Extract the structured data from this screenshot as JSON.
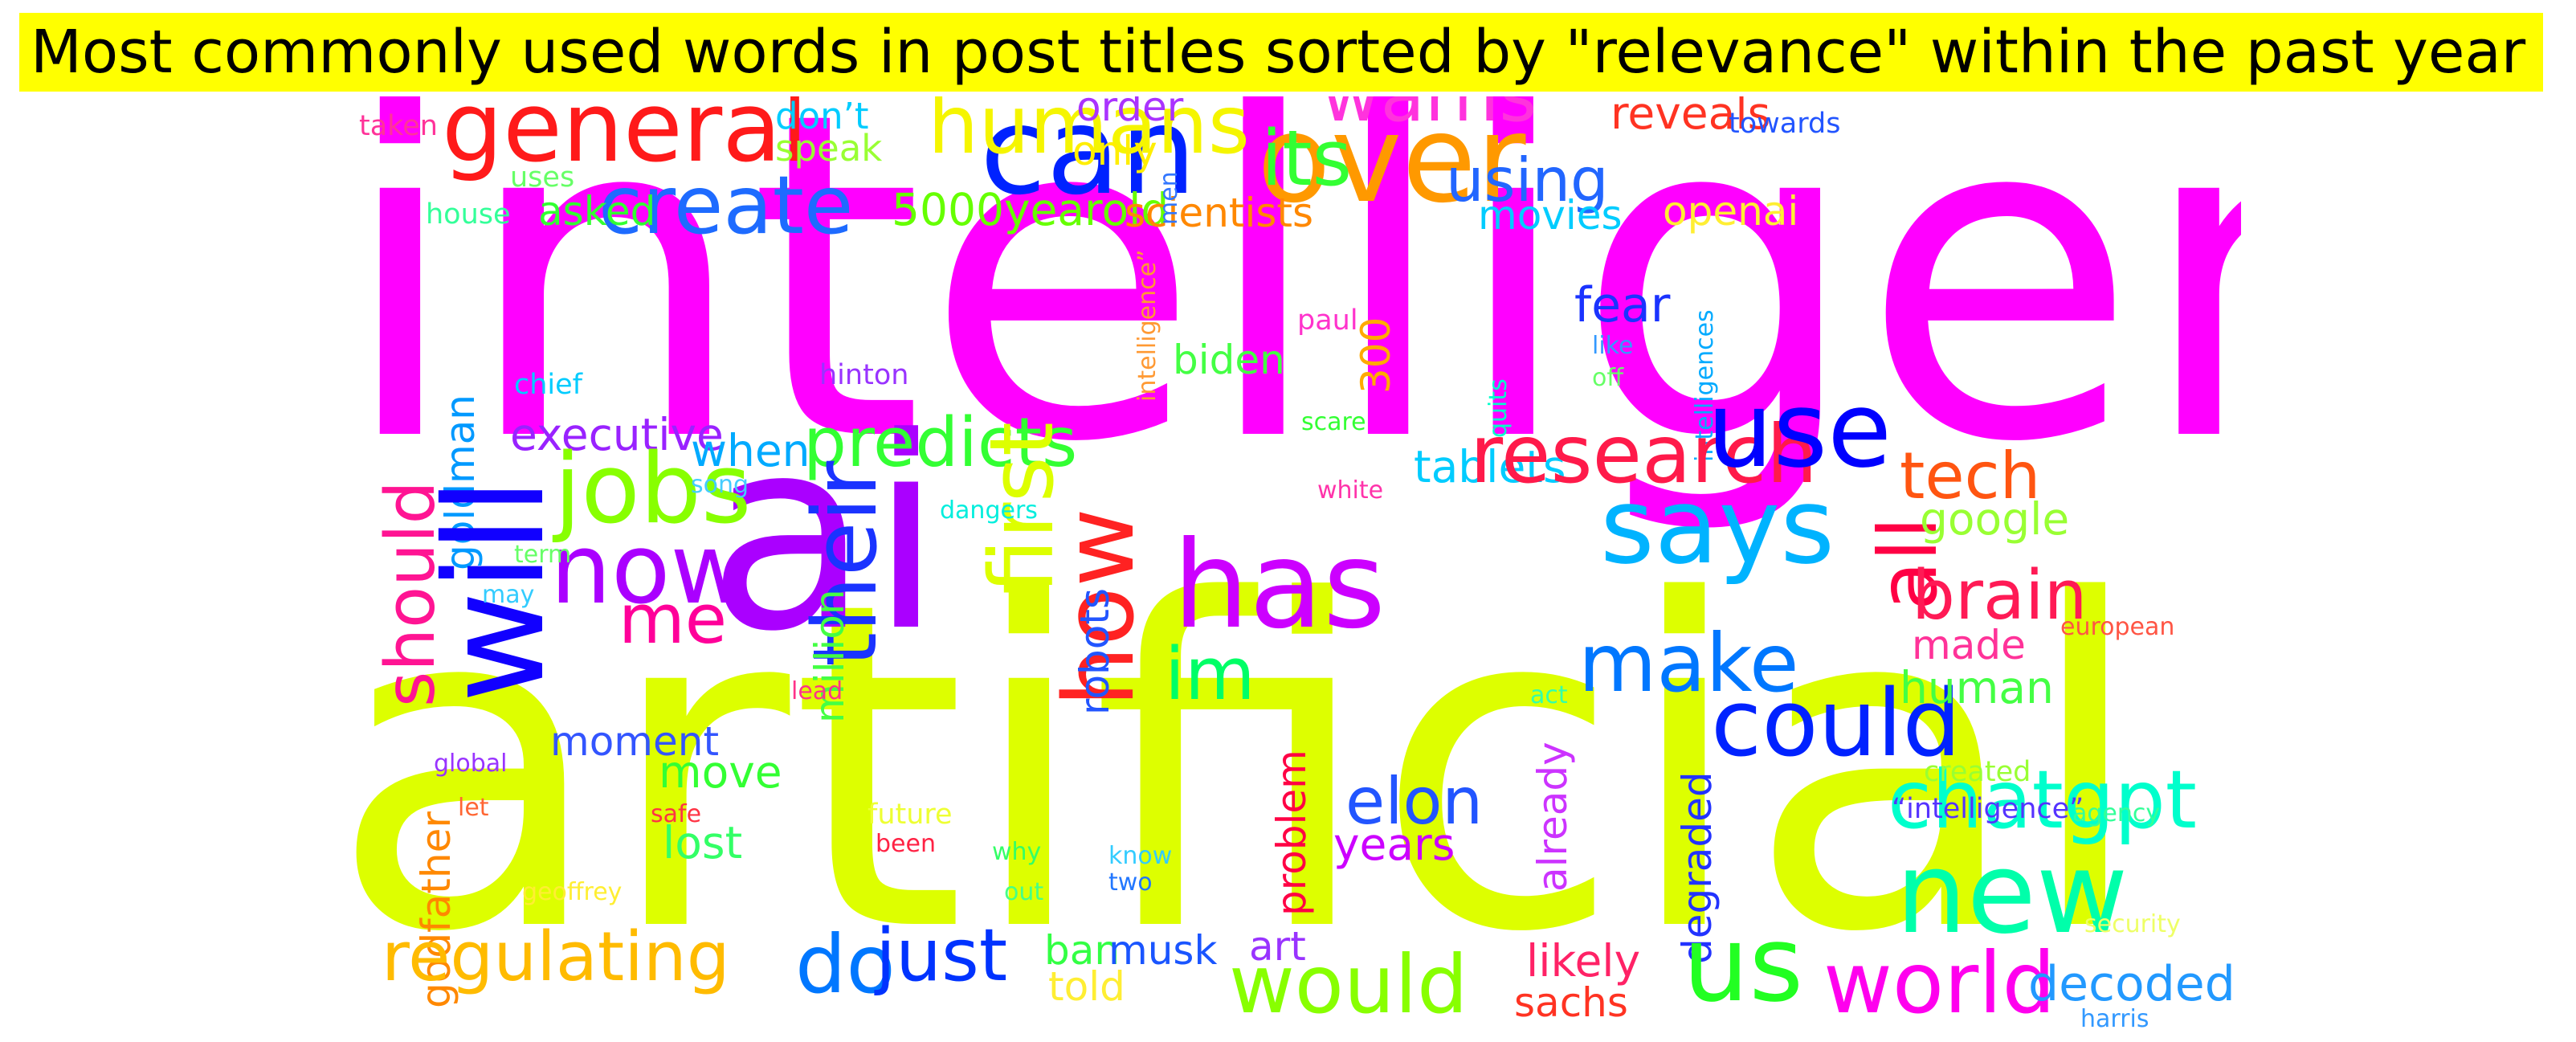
{
  "title": "Most commonly used words in post titles sorted by \"relevance\" within the past year",
  "words": [
    {
      "text": "intelligence",
      "color": "#ff00ff"
    },
    {
      "text": "artificial",
      "color": "#ddff00"
    },
    {
      "text": "ai",
      "color": "#aa00ff"
    },
    {
      "text": "can",
      "color": "#0022ff"
    },
    {
      "text": "over",
      "color": "#ff9900"
    },
    {
      "text": "general",
      "color": "#ff1a1a"
    },
    {
      "text": "humans",
      "color": "#f5f500"
    },
    {
      "text": "warns",
      "color": "#ff33dd"
    },
    {
      "text": "its",
      "color": "#33ff33"
    },
    {
      "text": "using",
      "color": "#2266ff"
    },
    {
      "text": "reveals",
      "color": "#ff3322"
    },
    {
      "text": "towards",
      "color": "#2255ff"
    },
    {
      "text": "create",
      "color": "#1e6bff"
    },
    {
      "text": "don’t",
      "color": "#00ccff"
    },
    {
      "text": "speak",
      "color": "#99ff33"
    },
    {
      "text": "order",
      "color": "#aa33ff"
    },
    {
      "text": "only",
      "color": "#ffee00"
    },
    {
      "text": "taken",
      "color": "#ff3399"
    },
    {
      "text": "uses",
      "color": "#66ff66"
    },
    {
      "text": "house",
      "color": "#33ff99"
    },
    {
      "text": "asked",
      "color": "#33ff33"
    },
    {
      "text": "5000yearold",
      "color": "#66ff00"
    },
    {
      "text": "scientists",
      "color": "#ff8800"
    },
    {
      "text": "movies",
      "color": "#00ccff"
    },
    {
      "text": "openai",
      "color": "#ffee33"
    },
    {
      "text": "men",
      "color": "#3377ff"
    },
    {
      "text": "intelligence”",
      "color": "#ff9933"
    },
    {
      "text": "fear",
      "color": "#1a33ff"
    },
    {
      "text": "like",
      "color": "#3399ff"
    },
    {
      "text": "off",
      "color": "#66ff66"
    },
    {
      "text": "paul",
      "color": "#ff33cc"
    },
    {
      "text": "hinton",
      "color": "#9933ff"
    },
    {
      "text": "chief",
      "color": "#00ccff"
    },
    {
      "text": "biden",
      "color": "#44ff44"
    },
    {
      "text": "300",
      "color": "#ffaa00"
    },
    {
      "text": "quits",
      "color": "#00ffcc"
    },
    {
      "text": "intelligences",
      "color": "#00aaff"
    },
    {
      "text": "goldman",
      "color": "#0099ff"
    },
    {
      "text": "will",
      "color": "#1100ff"
    },
    {
      "text": "should",
      "color": "#ff1493"
    },
    {
      "text": "executive",
      "color": "#9922ff"
    },
    {
      "text": "jobs",
      "color": "#88ff00"
    },
    {
      "text": "now",
      "color": "#aa00ff"
    },
    {
      "text": "me",
      "color": "#ff0099"
    },
    {
      "text": "when",
      "color": "#00aaff"
    },
    {
      "text": "song",
      "color": "#44ccff"
    },
    {
      "text": "predicts",
      "color": "#33ff33"
    },
    {
      "text": "their",
      "color": "#1a33ff"
    },
    {
      "text": "first",
      "color": "#ddff00"
    },
    {
      "text": "how",
      "color": "#ff2222"
    },
    {
      "text": "has",
      "color": "#cc00ff"
    },
    {
      "text": "scare",
      "color": "#33ff33"
    },
    {
      "text": "dangers",
      "color": "#00eedd"
    },
    {
      "text": "white",
      "color": "#ff33aa"
    },
    {
      "text": "tablets",
      "color": "#00ccff"
    },
    {
      "text": "research",
      "color": "#ff1a4a"
    },
    {
      "text": "use",
      "color": "#0000ff"
    },
    {
      "text": "says",
      "color": "#00b3ff"
    },
    {
      "text": "tech",
      "color": "#ff5511"
    },
    {
      "text": "all",
      "color": "#ff0044"
    },
    {
      "text": "google",
      "color": "#99ff33"
    },
    {
      "text": "brain",
      "color": "#ff1a55"
    },
    {
      "text": "made",
      "color": "#ff3399"
    },
    {
      "text": "term",
      "color": "#66ff66"
    },
    {
      "text": "may",
      "color": "#33ccff"
    },
    {
      "text": "million",
      "color": "#44ff44"
    },
    {
      "text": "robots",
      "color": "#2255ff"
    },
    {
      "text": "im",
      "color": "#00ff66"
    },
    {
      "text": "make",
      "color": "#0077ff"
    },
    {
      "text": "could",
      "color": "#0022ff"
    },
    {
      "text": "human",
      "color": "#44ff44"
    },
    {
      "text": "european",
      "color": "#ff5544"
    },
    {
      "text": "moment",
      "color": "#3355ff"
    },
    {
      "text": "lead",
      "color": "#ff3388"
    },
    {
      "text": "act",
      "color": "#33ffaa"
    },
    {
      "text": "chatgpt",
      "color": "#00ffcc"
    },
    {
      "text": "godfather",
      "color": "#ff8800"
    },
    {
      "text": "global",
      "color": "#9933ff"
    },
    {
      "text": "let",
      "color": "#ff6633"
    },
    {
      "text": "move",
      "color": "#33ff33"
    },
    {
      "text": "safe",
      "color": "#ff3344"
    },
    {
      "text": "future",
      "color": "#eeff33"
    },
    {
      "text": "been",
      "color": "#ff2244"
    },
    {
      "text": "problem",
      "color": "#ff0044"
    },
    {
      "text": "already",
      "color": "#cc33ff"
    },
    {
      "text": "degraded",
      "color": "#2233ff"
    },
    {
      "text": "created",
      "color": "#99ff33"
    },
    {
      "text": "“intelligence”",
      "color": "#5533ff"
    },
    {
      "text": "agency",
      "color": "#33ff99"
    },
    {
      "text": "elon",
      "color": "#2255ff"
    },
    {
      "text": "years",
      "color": "#cc00ff"
    },
    {
      "text": "new",
      "color": "#00ffaa"
    },
    {
      "text": "lost",
      "color": "#33ff66"
    },
    {
      "text": "why",
      "color": "#33ff66"
    },
    {
      "text": "know",
      "color": "#33ccff"
    },
    {
      "text": "two",
      "color": "#2277ff"
    },
    {
      "text": "geoffrey",
      "color": "#ffee33"
    },
    {
      "text": "out",
      "color": "#44ff88"
    },
    {
      "text": "security",
      "color": "#eeff66"
    },
    {
      "text": "regulating",
      "color": "#ffbb00"
    },
    {
      "text": "do",
      "color": "#0077ff"
    },
    {
      "text": "just",
      "color": "#0033ff"
    },
    {
      "text": "ban",
      "color": "#33ff44"
    },
    {
      "text": "musk",
      "color": "#1a55ff"
    },
    {
      "text": "art",
      "color": "#9933ff"
    },
    {
      "text": "told",
      "color": "#ffee33"
    },
    {
      "text": "would",
      "color": "#88ff00"
    },
    {
      "text": "likely",
      "color": "#ff2266"
    },
    {
      "text": "sachs",
      "color": "#ff3322"
    },
    {
      "text": "us",
      "color": "#22ff22"
    },
    {
      "text": "world",
      "color": "#ff00ee"
    },
    {
      "text": "decoded",
      "color": "#2299ff"
    },
    {
      "text": "harris",
      "color": "#3399ff"
    }
  ]
}
